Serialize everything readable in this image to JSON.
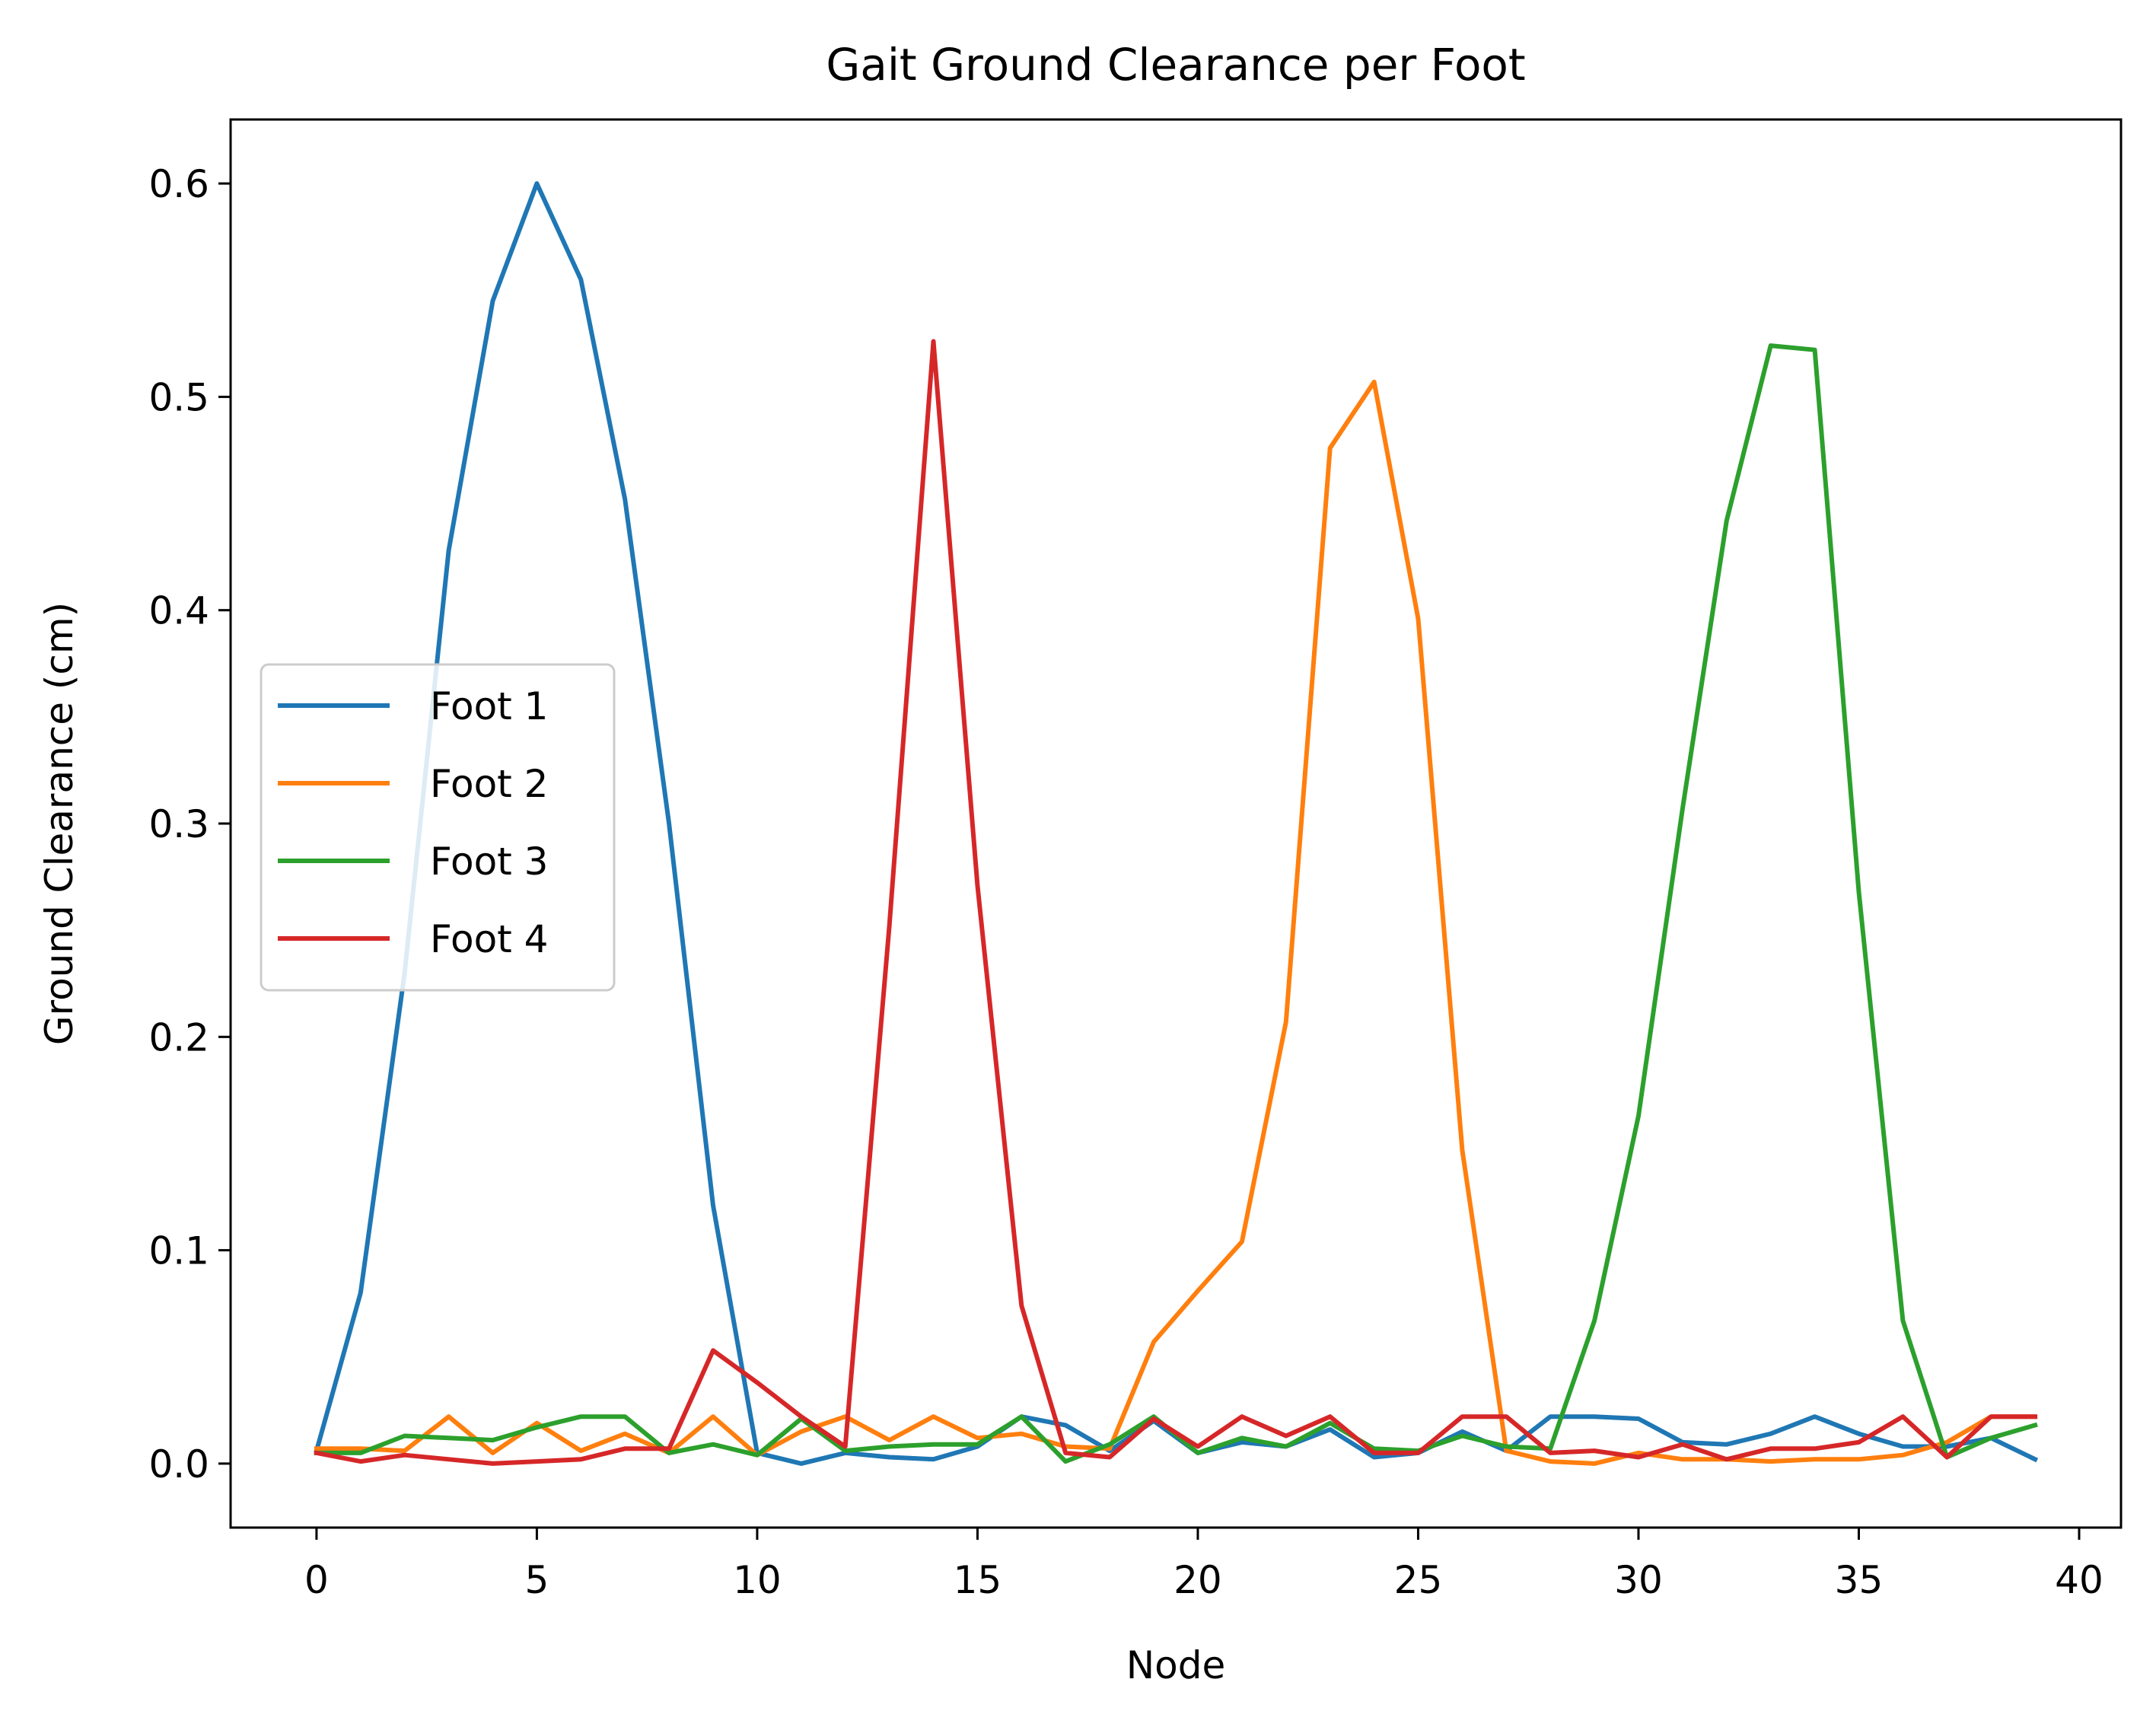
{
  "chart_data": {
    "type": "line",
    "title": "Gait Ground Clearance per Foot",
    "xlabel": "Node",
    "ylabel": "Ground Clearance (cm)",
    "xlim": [
      -1.95,
      40.95
    ],
    "ylim": [
      -0.03,
      0.63
    ],
    "xticks": [
      0,
      5,
      10,
      15,
      20,
      25,
      30,
      35,
      40
    ],
    "yticks": [
      0.0,
      0.1,
      0.2,
      0.3,
      0.4,
      0.5,
      0.6
    ],
    "ytick_labels": [
      "0.0",
      "0.1",
      "0.2",
      "0.3",
      "0.4",
      "0.5",
      "0.6"
    ],
    "grid": false,
    "legend_position": "center-left",
    "x": [
      0,
      1,
      2,
      3,
      4,
      5,
      6,
      7,
      8,
      9,
      10,
      11,
      12,
      13,
      14,
      15,
      16,
      17,
      18,
      19,
      20,
      21,
      22,
      23,
      24,
      25,
      26,
      27,
      28,
      29,
      30,
      31,
      32,
      33,
      34,
      35,
      36,
      37,
      38,
      39
    ],
    "series": [
      {
        "name": "Foot 1",
        "color": "#1f77b4",
        "values": [
          0.006,
          0.08,
          0.23,
          0.428,
          0.545,
          0.6,
          0.555,
          0.452,
          0.3,
          0.121,
          0.005,
          0.0,
          0.005,
          0.003,
          0.002,
          0.008,
          0.022,
          0.018,
          0.006,
          0.02,
          0.005,
          0.01,
          0.008,
          0.016,
          0.003,
          0.005,
          0.015,
          0.006,
          0.022,
          0.022,
          0.021,
          0.01,
          0.009,
          0.014,
          0.022,
          0.014,
          0.008,
          0.008,
          0.012,
          0.002
        ]
      },
      {
        "name": "Foot 2",
        "color": "#ff7f0e",
        "values": [
          0.007,
          0.007,
          0.006,
          0.022,
          0.005,
          0.019,
          0.006,
          0.014,
          0.005,
          0.022,
          0.004,
          0.015,
          0.022,
          0.011,
          0.022,
          0.012,
          0.014,
          0.008,
          0.007,
          0.057,
          0.081,
          0.104,
          0.207,
          0.476,
          0.507,
          0.396,
          0.147,
          0.006,
          0.001,
          0.0,
          0.005,
          0.002,
          0.002,
          0.001,
          0.002,
          0.002,
          0.004,
          0.01,
          0.022,
          0.022
        ]
      },
      {
        "name": "Foot 3",
        "color": "#2ca02c",
        "values": [
          0.005,
          0.005,
          0.013,
          0.012,
          0.011,
          0.017,
          0.022,
          0.022,
          0.005,
          0.009,
          0.004,
          0.021,
          0.006,
          0.008,
          0.009,
          0.009,
          0.022,
          0.001,
          0.009,
          0.022,
          0.005,
          0.012,
          0.008,
          0.019,
          0.007,
          0.006,
          0.013,
          0.008,
          0.007,
          0.067,
          0.163,
          0.307,
          0.442,
          0.524,
          0.522,
          0.268,
          0.067,
          0.003,
          0.012,
          0.018
        ]
      },
      {
        "name": "Foot 4",
        "color": "#d62728",
        "values": [
          0.005,
          0.001,
          0.004,
          0.002,
          0.0,
          0.001,
          0.002,
          0.007,
          0.007,
          0.053,
          0.038,
          0.022,
          0.008,
          0.252,
          0.526,
          0.271,
          0.074,
          0.005,
          0.003,
          0.021,
          0.008,
          0.022,
          0.013,
          0.022,
          0.005,
          0.005,
          0.022,
          0.022,
          0.005,
          0.006,
          0.003,
          0.009,
          0.002,
          0.007,
          0.007,
          0.01,
          0.022,
          0.003,
          0.022,
          0.022
        ]
      }
    ]
  }
}
